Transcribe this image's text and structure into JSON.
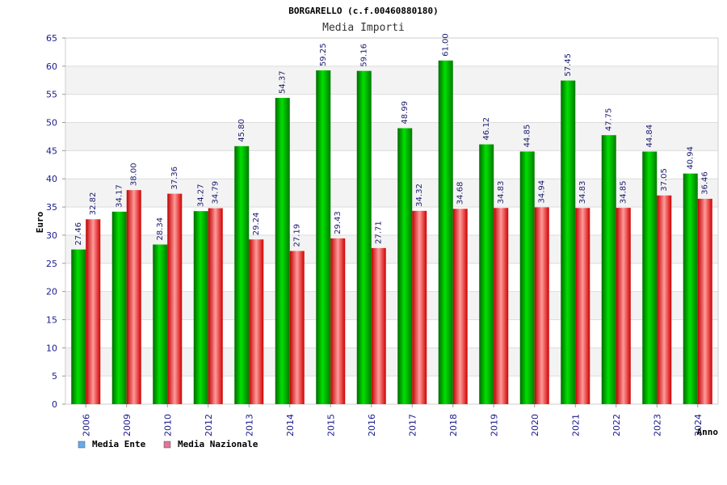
{
  "chart_data": {
    "type": "bar",
    "title": "BORGARELLO (c.f.00460880180)",
    "subtitle": "Media Importi",
    "xlabel": "Anno",
    "ylabel": "Euro",
    "ylim": [
      0,
      65
    ],
    "yticks": [
      0,
      5,
      10,
      15,
      20,
      25,
      30,
      35,
      40,
      45,
      50,
      55,
      60,
      65
    ],
    "categories": [
      "2006",
      "2009",
      "2010",
      "2012",
      "2013",
      "2014",
      "2015",
      "2016",
      "2017",
      "2018",
      "2019",
      "2020",
      "2021",
      "2022",
      "2023",
      "2024"
    ],
    "series": [
      {
        "name": "Media Ente",
        "values": [
          27.46,
          34.17,
          28.34,
          34.27,
          45.8,
          54.37,
          59.25,
          59.16,
          48.99,
          61.0,
          46.12,
          44.85,
          57.45,
          47.75,
          44.84,
          40.94
        ],
        "labels": [
          "27.46",
          "34.17",
          "28.34",
          "34.27",
          "45.80",
          "54.37",
          "59.25",
          "59.16",
          "48.99",
          "61.00",
          "46.12",
          "44.85",
          "57.45",
          "47.75",
          "44.84",
          "40.94"
        ],
        "color": "#00b400",
        "legend_color": "#66aaee"
      },
      {
        "name": "Media Nazionale",
        "values": [
          32.82,
          38.0,
          37.36,
          34.79,
          29.24,
          27.19,
          29.43,
          27.71,
          34.32,
          34.68,
          34.83,
          34.94,
          34.83,
          34.85,
          37.05,
          36.46
        ],
        "labels": [
          "32.82",
          "38.00",
          "37.36",
          "34.79",
          "29.24",
          "27.19",
          "29.43",
          "27.71",
          "34.32",
          "34.68",
          "34.83",
          "34.94",
          "34.83",
          "34.85",
          "37.05",
          "36.46"
        ],
        "color": "#e60000",
        "legend_color": "#dd7799"
      }
    ],
    "grid": true,
    "legend_position": "bottom-left"
  }
}
